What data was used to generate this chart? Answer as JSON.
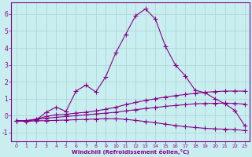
{
  "xlabel": "Windchill (Refroidissement éolien,°C)",
  "background_color": "#c8eef0",
  "line_color": "#880088",
  "grid_color": "#b0d8d8",
  "xlim": [
    -0.5,
    23.5
  ],
  "ylim": [
    -1.5,
    6.7
  ],
  "yticks": [
    -1,
    0,
    1,
    2,
    3,
    4,
    5,
    6
  ],
  "xtick_labels": [
    "0",
    "1",
    "2",
    "3",
    "4",
    "5",
    "6",
    "7",
    "8",
    "9",
    "10",
    "11",
    "12",
    "13",
    "14",
    "15",
    "16",
    "17",
    "18",
    "19",
    "20",
    "21",
    "22",
    "23"
  ],
  "xticks": [
    0,
    1,
    2,
    3,
    4,
    5,
    6,
    7,
    8,
    9,
    10,
    11,
    12,
    13,
    14,
    15,
    16,
    17,
    18,
    19,
    20,
    21,
    22,
    23
  ],
  "x": [
    0,
    1,
    2,
    3,
    4,
    5,
    6,
    7,
    8,
    9,
    10,
    11,
    12,
    13,
    14,
    15,
    16,
    17,
    18,
    19,
    20,
    21,
    22,
    23
  ],
  "line1": [
    -0.3,
    -0.3,
    -0.25,
    0.2,
    0.5,
    0.25,
    1.45,
    1.8,
    1.4,
    2.3,
    3.7,
    4.8,
    5.9,
    6.3,
    5.7,
    4.1,
    3.0,
    2.35,
    1.5,
    1.35,
    1.0,
    0.7,
    0.3,
    -0.6
  ],
  "line2": [
    -0.3,
    -0.3,
    -0.2,
    -0.05,
    0.05,
    0.08,
    0.15,
    0.2,
    0.28,
    0.38,
    0.5,
    0.65,
    0.78,
    0.9,
    1.0,
    1.1,
    1.18,
    1.25,
    1.32,
    1.38,
    1.42,
    1.45,
    1.45,
    1.45
  ],
  "line3": [
    -0.3,
    -0.3,
    -0.22,
    -0.15,
    -0.1,
    -0.05,
    0.0,
    0.05,
    0.1,
    0.15,
    0.2,
    0.28,
    0.35,
    0.42,
    0.48,
    0.55,
    0.6,
    0.65,
    0.7,
    0.72,
    0.73,
    0.74,
    0.72,
    0.68
  ],
  "line4": [
    -0.3,
    -0.35,
    -0.3,
    -0.3,
    -0.28,
    -0.26,
    -0.24,
    -0.22,
    -0.2,
    -0.18,
    -0.18,
    -0.22,
    -0.28,
    -0.35,
    -0.42,
    -0.5,
    -0.58,
    -0.65,
    -0.7,
    -0.75,
    -0.78,
    -0.8,
    -0.82,
    -0.88
  ]
}
